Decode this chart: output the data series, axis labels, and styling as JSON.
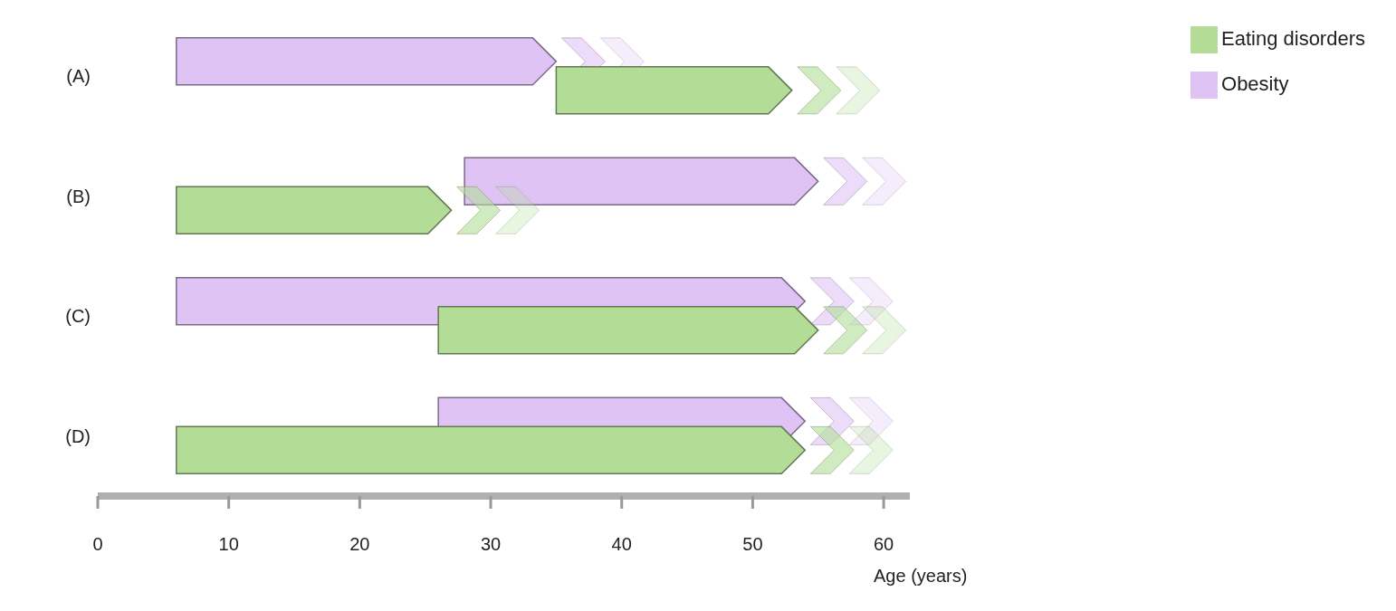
{
  "chart_data": {
    "type": "bar",
    "orientation": "horizontal",
    "categories": [
      "(A)",
      "(B)",
      "(C)",
      "(D)"
    ],
    "series": [
      {
        "name": "Obesity",
        "color": "#dfc3f5",
        "base": [
          6,
          28,
          6,
          26
        ],
        "values": [
          29,
          27,
          48,
          28
        ]
      },
      {
        "name": "Eating disorders",
        "color": "#b3dd97",
        "base": [
          35,
          6,
          26,
          6
        ],
        "values": [
          18,
          21,
          29,
          48
        ]
      }
    ],
    "xlim": [
      0,
      62
    ],
    "xticks": [
      0,
      10,
      20,
      30,
      40,
      50,
      60
    ],
    "xlabel": "Age (years)",
    "legend": "top right"
  }
}
